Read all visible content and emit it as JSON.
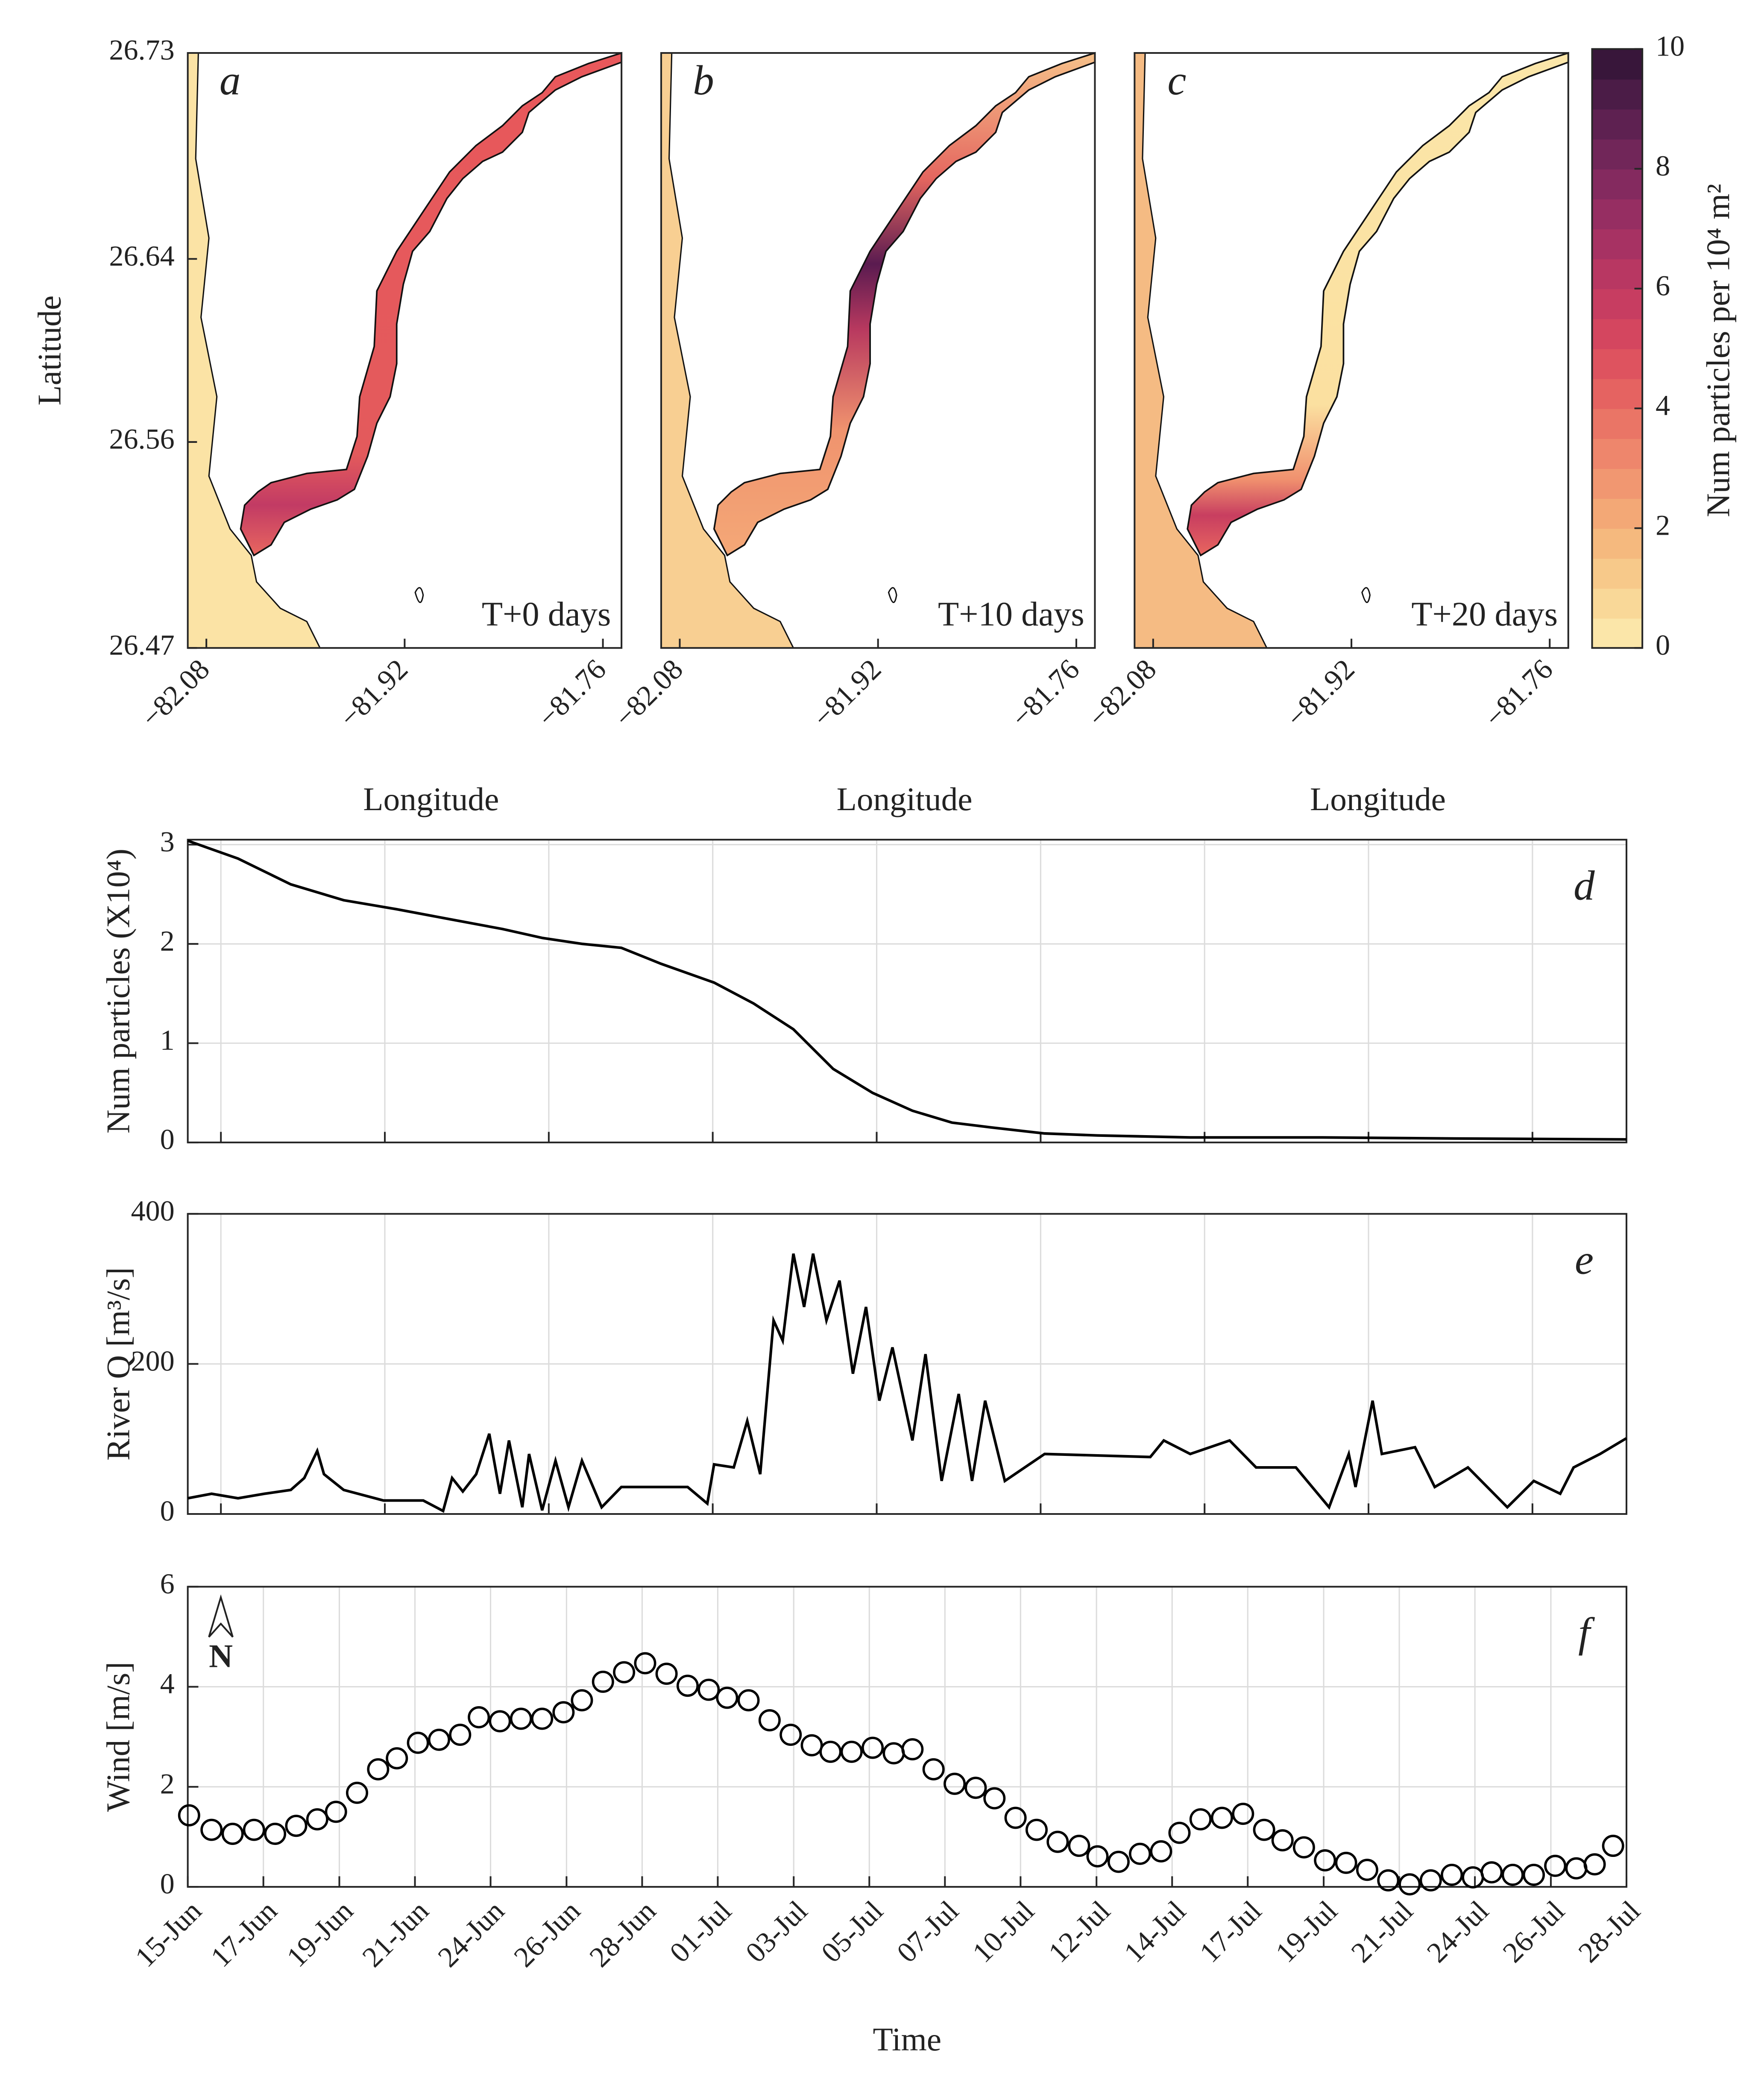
{
  "chart_data": [
    {
      "type": "map",
      "panel": "a",
      "annotation": "T+0 days",
      "xlabel": "Longitude",
      "ylabel": "Latitude",
      "xlim": [
        -82.095,
        -81.745
      ],
      "ylim": [
        26.47,
        26.73
      ],
      "xticks": [
        {
          "value": -82.08,
          "label": "−82.08"
        },
        {
          "value": -81.92,
          "label": "−81.92"
        },
        {
          "value": -81.76,
          "label": "−81.76"
        }
      ],
      "yticks": [
        26.47,
        26.56,
        26.64,
        26.73
      ]
    },
    {
      "type": "map",
      "panel": "b",
      "annotation": "T+10 days",
      "xlabel": "Longitude",
      "xlim": [
        -82.095,
        -81.745
      ],
      "ylim": [
        26.47,
        26.73
      ],
      "xticks": [
        {
          "value": -82.08,
          "label": "−82.08"
        },
        {
          "value": -81.92,
          "label": "−81.92"
        },
        {
          "value": -81.76,
          "label": "−81.76"
        }
      ]
    },
    {
      "type": "map",
      "panel": "c",
      "annotation": "T+20 days",
      "xlabel": "Longitude",
      "xlim": [
        -82.095,
        -81.745
      ],
      "ylim": [
        26.47,
        26.73
      ],
      "xticks": [
        {
          "value": -82.08,
          "label": "−82.08"
        },
        {
          "value": -81.92,
          "label": "−81.92"
        },
        {
          "value": -81.76,
          "label": "−81.76"
        }
      ]
    },
    {
      "type": "colorbar",
      "label": "Num particles per 10⁴ m²",
      "ylim": [
        0,
        10
      ],
      "yticks": [
        0,
        2,
        4,
        6,
        8,
        10
      ],
      "colors": [
        "#fbe6a9",
        "#f9d898",
        "#f7c98a",
        "#f5b97e",
        "#f3a876",
        "#f19771",
        "#ee866c",
        "#ea7566",
        "#e56361",
        "#de535f",
        "#d4465f",
        "#c73d61",
        "#b83762",
        "#a73263",
        "#962e62",
        "#842a5f",
        "#712659",
        "#5e2151",
        "#4b1c47",
        "#38163a"
      ]
    },
    {
      "type": "line",
      "panel": "d",
      "ylabel": "Num particles (X10⁴)",
      "grid": true,
      "xlim": [
        0,
        43
      ],
      "xticks": [
        0.99,
        5.89,
        10.79,
        15.69,
        20.59,
        25.49,
        30.39,
        35.29,
        40.19
      ],
      "ylim": [
        0,
        3.05
      ],
      "yticks": [
        0,
        1,
        2,
        3
      ],
      "series": [
        {
          "color": "#000000",
          "x": [
            0,
            1.5,
            3.08,
            4.66,
            6.24,
            7.82,
            9.41,
            10.59,
            11.78,
            12.96,
            14.15,
            15.73,
            16.91,
            18.1,
            19.29,
            20.47,
            21.66,
            22.84,
            24.03,
            25.61,
            27.19,
            29.96,
            33.91,
            37.86,
            43
          ],
          "values": [
            3.04,
            2.86,
            2.6,
            2.44,
            2.35,
            2.25,
            2.15,
            2.06,
            2.0,
            1.96,
            1.8,
            1.61,
            1.4,
            1.14,
            0.74,
            0.5,
            0.32,
            0.2,
            0.15,
            0.09,
            0.07,
            0.05,
            0.05,
            0.04,
            0.03
          ]
        }
      ]
    },
    {
      "type": "line",
      "panel": "e",
      "ylabel": "River Q [m³/s]",
      "grid": true,
      "xlim": [
        0,
        43
      ],
      "xticks": [
        0.99,
        5.89,
        10.79,
        15.69,
        20.59,
        25.49,
        30.39,
        35.29,
        40.19
      ],
      "ylim": [
        0,
        400
      ],
      "yticks": [
        0,
        200,
        400
      ],
      "series": [
        {
          "color": "#000000",
          "x": [
            0,
            0.71,
            1.5,
            2.29,
            3.08,
            3.48,
            3.87,
            4.07,
            4.66,
            5.85,
            7.04,
            7.63,
            7.9,
            8.22,
            8.62,
            9.01,
            9.33,
            9.6,
            10.0,
            10.2,
            10.59,
            10.99,
            11.38,
            11.78,
            12.37,
            12.96,
            14.94,
            15.53,
            15.73,
            16.32,
            16.72,
            17.11,
            17.51,
            17.78,
            18.1,
            18.42,
            18.69,
            19.09,
            19.48,
            19.88,
            20.27,
            20.67,
            21.06,
            21.66,
            22.05,
            22.53,
            23.04,
            23.44,
            23.83,
            24.42,
            25.61,
            28.77,
            29.17,
            29.96,
            31.14,
            31.93,
            33.12,
            34.11,
            34.7,
            34.9,
            35.41,
            35.69,
            36.68,
            37.27,
            38.26,
            39.44,
            40.23,
            41.02,
            41.42,
            42.21,
            43
          ],
          "values": [
            21,
            27,
            21,
            27,
            32,
            48,
            84,
            53,
            32,
            18,
            18,
            4,
            48,
            30,
            53,
            107,
            27,
            98,
            9,
            80,
            5,
            71,
            9,
            71,
            9,
            36,
            36,
            14,
            66,
            62,
            124,
            53,
            258,
            231,
            347,
            276,
            347,
            258,
            311,
            187,
            276,
            151,
            222,
            98,
            213,
            44,
            160,
            44,
            151,
            44,
            80,
            76,
            98,
            80,
            98,
            62,
            62,
            9,
            80,
            36,
            151,
            80,
            89,
            36,
            62,
            9,
            44,
            27,
            62,
            80,
            101
          ]
        }
      ]
    },
    {
      "type": "scatter",
      "panel": "f",
      "ylabel": "Wind [m/s]",
      "xlabel": "Time",
      "annotation": "N",
      "grid": true,
      "xlim": [
        0,
        43
      ],
      "xticks": [
        {
          "value": 0,
          "label": "15-Jun"
        },
        {
          "value": 2.26,
          "label": "17-Jun"
        },
        {
          "value": 4.53,
          "label": "19-Jun"
        },
        {
          "value": 6.79,
          "label": "21-Jun"
        },
        {
          "value": 9.05,
          "label": "24-Jun"
        },
        {
          "value": 11.32,
          "label": "26-Jun"
        },
        {
          "value": 13.58,
          "label": "28-Jun"
        },
        {
          "value": 15.84,
          "label": "01-Jul"
        },
        {
          "value": 18.11,
          "label": "03-Jul"
        },
        {
          "value": 20.37,
          "label": "05-Jul"
        },
        {
          "value": 22.63,
          "label": "07-Jul"
        },
        {
          "value": 24.89,
          "label": "10-Jul"
        },
        {
          "value": 27.16,
          "label": "12-Jul"
        },
        {
          "value": 29.42,
          "label": "14-Jul"
        },
        {
          "value": 31.68,
          "label": "17-Jul"
        },
        {
          "value": 33.95,
          "label": "19-Jul"
        },
        {
          "value": 36.21,
          "label": "21-Jul"
        },
        {
          "value": 38.47,
          "label": "24-Jul"
        },
        {
          "value": 40.74,
          "label": "26-Jul"
        },
        {
          "value": 43,
          "label": "28-Jul"
        }
      ],
      "ylim": [
        0,
        6
      ],
      "yticks": [
        0,
        2,
        4,
        6
      ],
      "series": [
        {
          "color": "#000000",
          "x": [
            0.04,
            0.71,
            1.34,
            1.98,
            2.61,
            3.24,
            3.87,
            4.43,
            5.06,
            5.69,
            6.25,
            6.88,
            7.51,
            8.14,
            8.7,
            9.33,
            9.96,
            10.59,
            11.23,
            11.78,
            12.41,
            13.04,
            13.67,
            14.31,
            14.94,
            15.57,
            16.12,
            16.76,
            17.39,
            18.02,
            18.65,
            19.21,
            19.84,
            20.47,
            21.1,
            21.66,
            22.29,
            22.92,
            23.55,
            24.11,
            24.74,
            25.37,
            26.0,
            26.64,
            27.19,
            27.82,
            28.46,
            29.09,
            29.64,
            30.27,
            30.91,
            31.54,
            32.17,
            32.72,
            33.36,
            33.99,
            34.62,
            35.25,
            35.88,
            36.52,
            37.15,
            37.78,
            38.41,
            38.97,
            39.6,
            40.23,
            40.87,
            41.5,
            42.05,
            42.6
          ],
          "values": [
            1.43,
            1.14,
            1.06,
            1.14,
            1.06,
            1.22,
            1.35,
            1.5,
            1.88,
            2.35,
            2.57,
            2.88,
            2.94,
            3.04,
            3.39,
            3.31,
            3.36,
            3.36,
            3.49,
            3.73,
            4.1,
            4.29,
            4.47,
            4.26,
            4.02,
            3.94,
            3.78,
            3.73,
            3.33,
            3.04,
            2.83,
            2.7,
            2.7,
            2.78,
            2.67,
            2.75,
            2.35,
            2.06,
            1.98,
            1.77,
            1.38,
            1.14,
            0.9,
            0.82,
            0.61,
            0.5,
            0.66,
            0.71,
            1.08,
            1.35,
            1.38,
            1.46,
            1.14,
            0.93,
            0.79,
            0.53,
            0.48,
            0.34,
            0.13,
            0.05,
            0.13,
            0.24,
            0.19,
            0.29,
            0.24,
            0.24,
            0.42,
            0.37,
            0.45,
            0.82
          ]
        }
      ]
    }
  ]
}
